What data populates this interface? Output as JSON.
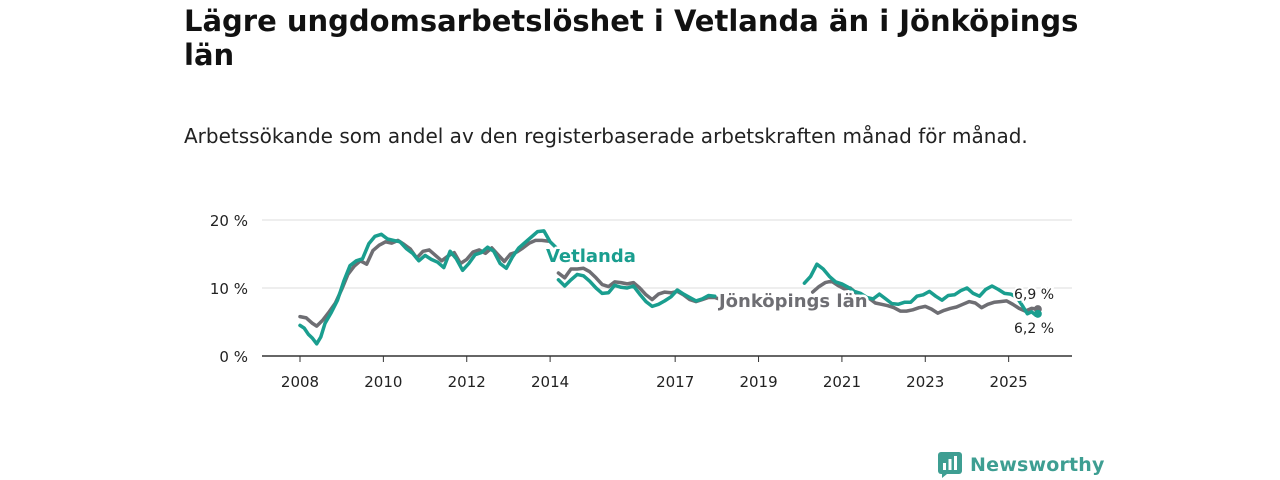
{
  "chart_data": {
    "type": "line",
    "title": "Lägre ungdomsarbetslöshet i Vetlanda än i Jönköpings län",
    "subtitle": "Arbetssökande som andel av den registerbaserade arbetskraften månad för månad.",
    "xlabel": "",
    "ylabel": "",
    "xlim": [
      2008,
      2025.8
    ],
    "ylim": [
      0,
      20
    ],
    "x_ticks": [
      {
        "value": 2008,
        "label": "2008"
      },
      {
        "value": 2010,
        "label": "2010"
      },
      {
        "value": 2012,
        "label": "2012"
      },
      {
        "value": 2014,
        "label": "2014"
      },
      {
        "value": 2017,
        "label": "2017"
      },
      {
        "value": 2019,
        "label": "2019"
      },
      {
        "value": 2021,
        "label": "2021"
      },
      {
        "value": 2023,
        "label": "2023"
      },
      {
        "value": 2025,
        "label": "2025"
      }
    ],
    "y_ticks": [
      {
        "value": 0,
        "label": "0 %"
      },
      {
        "value": 10,
        "label": "10 %"
      },
      {
        "value": 20,
        "label": "20 %"
      }
    ],
    "grid": true,
    "series": [
      {
        "name": "Jönköpings län",
        "label": "Jönköpings län",
        "end_label": "6,9 %",
        "color": "#6e6e73",
        "points": [
          [
            2008.0,
            5.8
          ],
          [
            2008.15,
            5.6
          ],
          [
            2008.3,
            4.8
          ],
          [
            2008.4,
            4.4
          ],
          [
            2008.55,
            5.3
          ],
          [
            2008.7,
            6.5
          ],
          [
            2008.85,
            7.8
          ],
          [
            2009.0,
            9.8
          ],
          [
            2009.15,
            12.0
          ],
          [
            2009.3,
            13.2
          ],
          [
            2009.45,
            14.0
          ],
          [
            2009.6,
            13.5
          ],
          [
            2009.75,
            15.5
          ],
          [
            2009.9,
            16.3
          ],
          [
            2010.05,
            16.8
          ],
          [
            2010.2,
            16.6
          ],
          [
            2010.35,
            17.0
          ],
          [
            2010.5,
            16.4
          ],
          [
            2010.65,
            15.7
          ],
          [
            2010.8,
            14.4
          ],
          [
            2010.95,
            15.4
          ],
          [
            2011.1,
            15.6
          ],
          [
            2011.25,
            14.8
          ],
          [
            2011.4,
            14.0
          ],
          [
            2011.55,
            14.7
          ],
          [
            2011.7,
            15.2
          ],
          [
            2011.85,
            13.6
          ],
          [
            2012.0,
            14.2
          ],
          [
            2012.15,
            15.3
          ],
          [
            2012.3,
            15.6
          ],
          [
            2012.45,
            15.1
          ],
          [
            2012.6,
            15.9
          ],
          [
            2012.75,
            14.9
          ],
          [
            2012.9,
            13.9
          ],
          [
            2013.05,
            15.0
          ],
          [
            2013.2,
            15.3
          ],
          [
            2013.35,
            15.9
          ],
          [
            2013.5,
            16.6
          ],
          [
            2013.65,
            17.0
          ],
          [
            2013.8,
            17.0
          ],
          [
            2013.95,
            16.9
          ],
          null,
          [
            2014.2,
            12.2
          ],
          [
            2014.35,
            11.5
          ],
          [
            2014.5,
            12.8
          ],
          [
            2014.65,
            12.8
          ],
          [
            2014.8,
            12.9
          ],
          [
            2014.95,
            12.4
          ],
          [
            2015.1,
            11.5
          ],
          [
            2015.25,
            10.5
          ],
          [
            2015.4,
            10.2
          ],
          [
            2015.55,
            10.9
          ],
          [
            2015.7,
            10.8
          ],
          [
            2015.85,
            10.6
          ],
          [
            2016.0,
            10.8
          ],
          [
            2016.15,
            10.0
          ],
          [
            2016.3,
            9.0
          ],
          [
            2016.45,
            8.3
          ],
          [
            2016.6,
            9.1
          ],
          [
            2016.75,
            9.4
          ],
          [
            2016.9,
            9.3
          ],
          [
            2017.05,
            9.5
          ],
          [
            2017.2,
            9.0
          ],
          [
            2017.35,
            8.3
          ],
          [
            2017.5,
            8.0
          ],
          [
            2017.65,
            8.3
          ],
          [
            2017.8,
            8.6
          ],
          [
            2017.95,
            8.6
          ],
          [
            2018.1,
            8.3
          ],
          [
            2018.25,
            8.0
          ],
          null,
          [
            2020.3,
            9.4
          ],
          [
            2020.45,
            10.2
          ],
          [
            2020.6,
            10.8
          ],
          [
            2020.75,
            11.0
          ],
          [
            2020.9,
            10.4
          ],
          [
            2021.05,
            9.9
          ],
          [
            2021.2,
            10.0
          ],
          [
            2021.35,
            9.2
          ],
          [
            2021.5,
            8.6
          ],
          [
            2021.65,
            8.5
          ],
          [
            2021.8,
            7.8
          ],
          [
            2021.95,
            7.6
          ],
          [
            2022.1,
            7.4
          ],
          [
            2022.25,
            7.1
          ],
          [
            2022.4,
            6.6
          ],
          [
            2022.55,
            6.6
          ],
          [
            2022.7,
            6.8
          ],
          [
            2022.85,
            7.1
          ],
          [
            2023.0,
            7.3
          ],
          [
            2023.15,
            6.9
          ],
          [
            2023.3,
            6.3
          ],
          [
            2023.45,
            6.7
          ],
          [
            2023.6,
            7.0
          ],
          [
            2023.75,
            7.2
          ],
          [
            2023.9,
            7.6
          ],
          [
            2024.05,
            8.0
          ],
          [
            2024.2,
            7.8
          ],
          [
            2024.35,
            7.1
          ],
          [
            2024.5,
            7.6
          ],
          [
            2024.65,
            7.9
          ],
          [
            2024.8,
            8.0
          ],
          [
            2024.95,
            8.1
          ],
          [
            2025.1,
            7.6
          ],
          [
            2025.25,
            7.0
          ],
          [
            2025.4,
            6.6
          ],
          [
            2025.55,
            7.0
          ],
          [
            2025.7,
            6.9
          ]
        ]
      },
      {
        "name": "Vetlanda",
        "label": "Vetlanda",
        "end_label": "6,2 %",
        "color": "#1a9e8f",
        "points": [
          [
            2008.0,
            4.5
          ],
          [
            2008.1,
            4.1
          ],
          [
            2008.2,
            3.2
          ],
          [
            2008.3,
            2.6
          ],
          [
            2008.4,
            1.8
          ],
          [
            2008.5,
            2.8
          ],
          [
            2008.6,
            4.8
          ],
          [
            2008.75,
            6.4
          ],
          [
            2008.9,
            8.2
          ],
          [
            2009.05,
            11.0
          ],
          [
            2009.2,
            13.3
          ],
          [
            2009.35,
            14.0
          ],
          [
            2009.5,
            14.3
          ],
          [
            2009.65,
            16.5
          ],
          [
            2009.8,
            17.6
          ],
          [
            2009.95,
            17.9
          ],
          [
            2010.1,
            17.2
          ],
          [
            2010.25,
            17.0
          ],
          [
            2010.4,
            16.8
          ],
          [
            2010.55,
            15.8
          ],
          [
            2010.7,
            15.1
          ],
          [
            2010.85,
            14.0
          ],
          [
            2011.0,
            14.8
          ],
          [
            2011.15,
            14.2
          ],
          [
            2011.3,
            13.8
          ],
          [
            2011.45,
            13.0
          ],
          [
            2011.6,
            15.4
          ],
          [
            2011.75,
            14.3
          ],
          [
            2011.9,
            12.6
          ],
          [
            2012.05,
            13.6
          ],
          [
            2012.2,
            14.9
          ],
          [
            2012.35,
            15.2
          ],
          [
            2012.5,
            16.0
          ],
          [
            2012.65,
            15.4
          ],
          [
            2012.8,
            13.6
          ],
          [
            2012.95,
            12.9
          ],
          [
            2013.1,
            14.6
          ],
          [
            2013.25,
            15.9
          ],
          [
            2013.4,
            16.7
          ],
          [
            2013.55,
            17.5
          ],
          [
            2013.7,
            18.3
          ],
          [
            2013.85,
            18.4
          ],
          [
            2014.0,
            16.8
          ],
          [
            2014.15,
            15.9
          ],
          null,
          [
            2014.2,
            11.2
          ],
          [
            2014.35,
            10.3
          ],
          [
            2014.5,
            11.2
          ],
          [
            2014.65,
            12.0
          ],
          [
            2014.8,
            11.8
          ],
          [
            2014.95,
            11.0
          ],
          [
            2015.1,
            10.0
          ],
          [
            2015.25,
            9.2
          ],
          [
            2015.4,
            9.3
          ],
          [
            2015.55,
            10.4
          ],
          [
            2015.7,
            10.1
          ],
          [
            2015.85,
            10.0
          ],
          [
            2016.0,
            10.3
          ],
          [
            2016.15,
            9.1
          ],
          [
            2016.3,
            8.0
          ],
          [
            2016.45,
            7.3
          ],
          [
            2016.6,
            7.6
          ],
          [
            2016.75,
            8.1
          ],
          [
            2016.9,
            8.7
          ],
          [
            2017.05,
            9.7
          ],
          [
            2017.2,
            9.1
          ],
          [
            2017.35,
            8.6
          ],
          [
            2017.5,
            8.1
          ],
          [
            2017.65,
            8.4
          ],
          [
            2017.8,
            8.9
          ],
          [
            2017.95,
            8.8
          ],
          null,
          [
            2020.1,
            10.7
          ],
          [
            2020.25,
            11.7
          ],
          [
            2020.4,
            13.5
          ],
          [
            2020.55,
            12.8
          ],
          [
            2020.7,
            11.7
          ],
          [
            2020.85,
            10.9
          ],
          [
            2021.0,
            10.6
          ],
          [
            2021.15,
            10.1
          ],
          [
            2021.3,
            9.5
          ],
          [
            2021.45,
            9.2
          ],
          [
            2021.6,
            8.6
          ],
          [
            2021.75,
            8.4
          ],
          [
            2021.9,
            9.1
          ],
          [
            2022.05,
            8.4
          ],
          [
            2022.2,
            7.7
          ],
          [
            2022.35,
            7.6
          ],
          [
            2022.5,
            7.9
          ],
          [
            2022.65,
            7.9
          ],
          [
            2022.8,
            8.8
          ],
          [
            2022.95,
            9.0
          ],
          [
            2023.1,
            9.5
          ],
          [
            2023.25,
            8.8
          ],
          [
            2023.4,
            8.2
          ],
          [
            2023.55,
            8.9
          ],
          [
            2023.7,
            9.0
          ],
          [
            2023.85,
            9.6
          ],
          [
            2024.0,
            10.0
          ],
          [
            2024.15,
            9.2
          ],
          [
            2024.3,
            8.8
          ],
          [
            2024.45,
            9.8
          ],
          [
            2024.6,
            10.3
          ],
          [
            2024.75,
            9.8
          ],
          [
            2024.9,
            9.2
          ],
          [
            2025.05,
            9.1
          ],
          [
            2025.2,
            8.6
          ],
          [
            2025.35,
            7.2
          ],
          [
            2025.45,
            6.2
          ],
          [
            2025.55,
            6.5
          ],
          [
            2025.65,
            6.0
          ],
          [
            2025.7,
            6.2
          ]
        ]
      }
    ]
  },
  "brand": {
    "name": "Newsworthy",
    "color": "#3e9e92"
  }
}
